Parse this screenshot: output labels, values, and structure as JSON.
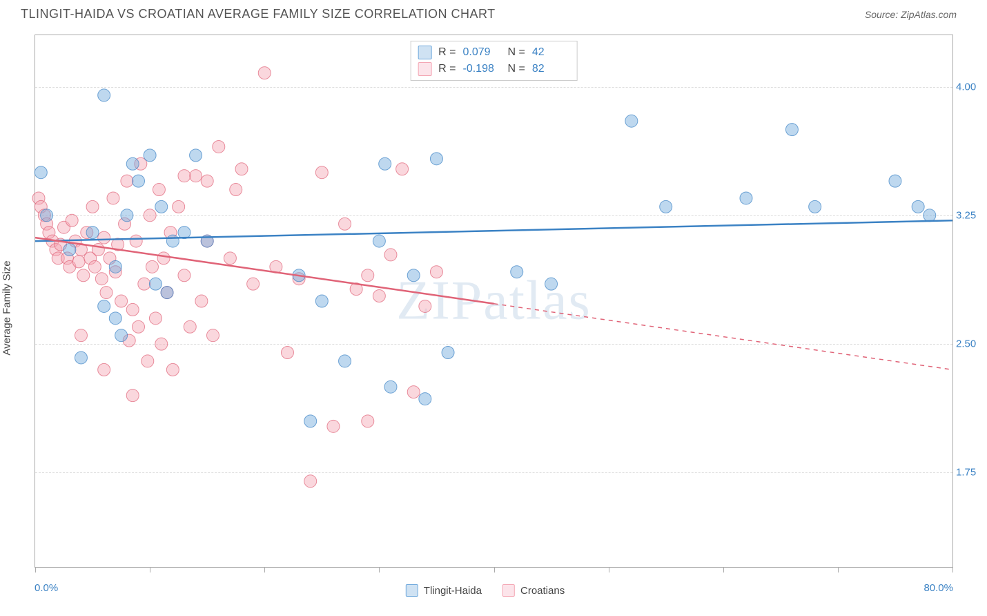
{
  "title": "TLINGIT-HAIDA VS CROATIAN AVERAGE FAMILY SIZE CORRELATION CHART",
  "source": "Source: ZipAtlas.com",
  "watermark": "ZIPatlas",
  "y_axis_label": "Average Family Size",
  "chart": {
    "type": "scatter",
    "background_color": "#ffffff",
    "grid_color": "#dddddd",
    "border_color": "#aaaaaa",
    "xlim": [
      0,
      80
    ],
    "ylim": [
      1.2,
      4.3
    ],
    "yticks": [
      1.75,
      2.5,
      3.25,
      4.0
    ],
    "ytick_labels": [
      "1.75",
      "2.50",
      "3.25",
      "4.00"
    ],
    "xticks": [
      0,
      10,
      20,
      30,
      40,
      50,
      60,
      70,
      80
    ],
    "xmin_label": "0.0%",
    "xmax_label": "80.0%",
    "marker_radius": 9,
    "marker_opacity": 0.45,
    "line_width": 2.5,
    "label_fontsize": 15,
    "title_fontsize": 18,
    "series": [
      {
        "name": "Tlingit-Haida",
        "color": "#6fa8dc",
        "stroke": "#3b82c4",
        "R": "0.079",
        "N": "42",
        "trend": {
          "x1": 0,
          "y1": 3.1,
          "x2": 80,
          "y2": 3.22,
          "dash_after_x": null
        },
        "points": [
          [
            0.5,
            3.5
          ],
          [
            1,
            3.25
          ],
          [
            6,
            3.95
          ],
          [
            8,
            3.25
          ],
          [
            8.5,
            3.55
          ],
          [
            9,
            3.45
          ],
          [
            7,
            2.95
          ],
          [
            10,
            3.6
          ],
          [
            10.5,
            2.85
          ],
          [
            11,
            3.3
          ],
          [
            11.5,
            2.8
          ],
          [
            12,
            3.1
          ],
          [
            4,
            2.42
          ],
          [
            6,
            2.72
          ],
          [
            7,
            2.65
          ],
          [
            7.5,
            2.55
          ],
          [
            13,
            3.15
          ],
          [
            14,
            3.6
          ],
          [
            15,
            3.1
          ],
          [
            23,
            2.9
          ],
          [
            25,
            2.75
          ],
          [
            24,
            2.05
          ],
          [
            27,
            2.4
          ],
          [
            30,
            3.1
          ],
          [
            30.5,
            3.55
          ],
          [
            31,
            2.25
          ],
          [
            33,
            2.9
          ],
          [
            35,
            3.58
          ],
          [
            34,
            2.18
          ],
          [
            36,
            2.45
          ],
          [
            42,
            2.92
          ],
          [
            45,
            2.85
          ],
          [
            52,
            3.8
          ],
          [
            55,
            3.3
          ],
          [
            62,
            3.35
          ],
          [
            66,
            3.75
          ],
          [
            68,
            3.3
          ],
          [
            75,
            3.45
          ],
          [
            77,
            3.3
          ],
          [
            78,
            3.25
          ],
          [
            3,
            3.05
          ],
          [
            5,
            3.15
          ]
        ]
      },
      {
        "name": "Croatians",
        "color": "#f4a6b4",
        "stroke": "#e06377",
        "R": "-0.198",
        "N": "82",
        "trend": {
          "x1": 0,
          "y1": 3.12,
          "x2": 80,
          "y2": 2.35,
          "dash_after_x": 40
        },
        "points": [
          [
            0.3,
            3.35
          ],
          [
            0.5,
            3.3
          ],
          [
            0.8,
            3.25
          ],
          [
            1,
            3.2
          ],
          [
            1.2,
            3.15
          ],
          [
            1.5,
            3.1
          ],
          [
            1.8,
            3.05
          ],
          [
            2,
            3.0
          ],
          [
            2.2,
            3.08
          ],
          [
            2.5,
            3.18
          ],
          [
            2.8,
            3.0
          ],
          [
            3,
            2.95
          ],
          [
            3.2,
            3.22
          ],
          [
            3.5,
            3.1
          ],
          [
            3.8,
            2.98
          ],
          [
            4,
            3.05
          ],
          [
            4.2,
            2.9
          ],
          [
            4.5,
            3.15
          ],
          [
            4.8,
            3.0
          ],
          [
            5,
            3.3
          ],
          [
            5.2,
            2.95
          ],
          [
            5.5,
            3.05
          ],
          [
            5.8,
            2.88
          ],
          [
            6,
            3.12
          ],
          [
            6.2,
            2.8
          ],
          [
            6.5,
            3.0
          ],
          [
            6.8,
            3.35
          ],
          [
            7,
            2.92
          ],
          [
            7.2,
            3.08
          ],
          [
            7.5,
            2.75
          ],
          [
            7.8,
            3.2
          ],
          [
            8,
            3.45
          ],
          [
            8.2,
            2.52
          ],
          [
            8.5,
            2.7
          ],
          [
            8.8,
            3.1
          ],
          [
            9,
            2.6
          ],
          [
            9.2,
            3.55
          ],
          [
            9.5,
            2.85
          ],
          [
            9.8,
            2.4
          ],
          [
            10,
            3.25
          ],
          [
            10.2,
            2.95
          ],
          [
            10.5,
            2.65
          ],
          [
            10.8,
            3.4
          ],
          [
            11,
            2.5
          ],
          [
            11.2,
            3.0
          ],
          [
            11.5,
            2.8
          ],
          [
            11.8,
            3.15
          ],
          [
            12,
            2.35
          ],
          [
            12.5,
            3.3
          ],
          [
            13,
            2.9
          ],
          [
            13.5,
            2.6
          ],
          [
            14,
            3.48
          ],
          [
            14.5,
            2.75
          ],
          [
            15,
            3.1
          ],
          [
            15.5,
            2.55
          ],
          [
            16,
            3.65
          ],
          [
            17,
            3.0
          ],
          [
            18,
            3.52
          ],
          [
            19,
            2.85
          ],
          [
            20,
            4.08
          ],
          [
            21,
            2.95
          ],
          [
            22,
            2.45
          ],
          [
            23,
            2.88
          ],
          [
            24,
            1.7
          ],
          [
            25,
            3.5
          ],
          [
            26,
            2.02
          ],
          [
            27,
            3.2
          ],
          [
            28,
            2.82
          ],
          [
            29,
            2.9
          ],
          [
            30,
            2.78
          ],
          [
            31,
            3.02
          ],
          [
            32,
            3.52
          ],
          [
            33,
            2.22
          ],
          [
            34,
            2.72
          ],
          [
            35,
            2.92
          ],
          [
            29,
            2.05
          ],
          [
            15,
            3.45
          ],
          [
            17.5,
            3.4
          ],
          [
            13,
            3.48
          ],
          [
            6,
            2.35
          ],
          [
            8.5,
            2.2
          ],
          [
            4,
            2.55
          ]
        ]
      }
    ]
  },
  "legend": {
    "items": [
      {
        "label": "Tlingit-Haida",
        "fill": "#cfe2f3",
        "border": "#6fa8dc"
      },
      {
        "label": "Croatians",
        "fill": "#fce4ea",
        "border": "#f4a6b4"
      }
    ]
  },
  "top_legend": {
    "r_label": "R =",
    "n_label": "N ="
  }
}
